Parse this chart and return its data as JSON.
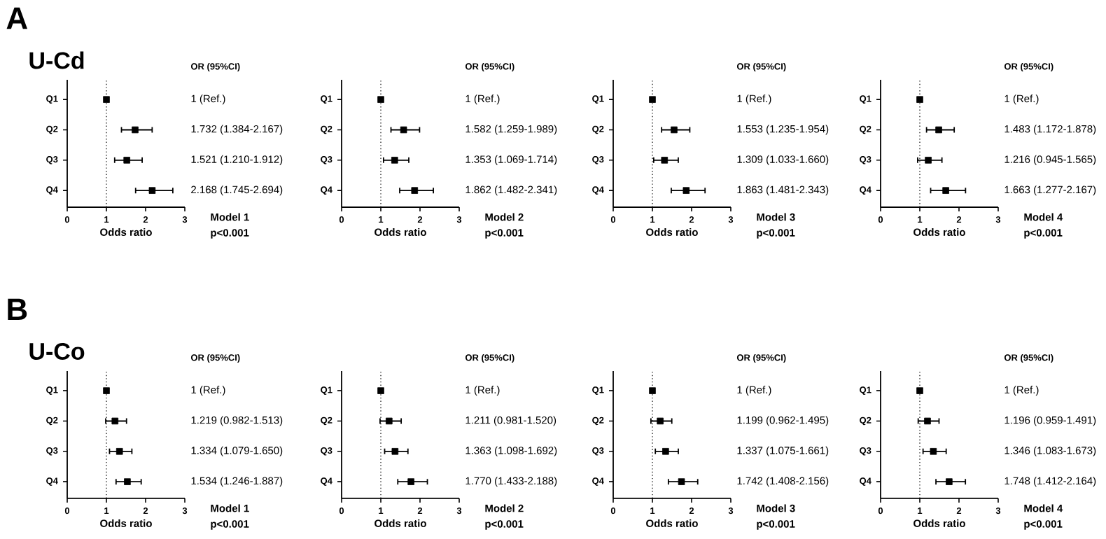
{
  "chart_data": [
    {
      "type": "scatter",
      "title": "A",
      "subtitle": "U-Cd",
      "orientation": "horizontal",
      "marker": "square",
      "color": "#000000",
      "categories": [
        "Q1",
        "Q2",
        "Q3",
        "Q4"
      ],
      "values": [
        1,
        1.732,
        1.521,
        2.168
      ],
      "errors": [
        null,
        [
          1.384,
          2.167
        ],
        [
          1.21,
          1.912
        ],
        [
          1.745,
          2.694
        ]
      ],
      "xlim": [
        0,
        3
      ],
      "xticks": [
        0,
        1,
        2,
        3
      ],
      "xlabel": "Odds ratio",
      "ref_lines": [
        {
          "axis": "x",
          "value": 1,
          "line_style": "dotted"
        }
      ],
      "annotations": [
        "OR (95%CI)",
        "1 (Ref.)",
        "1.732 (1.384-2.167)",
        "1.521 (1.210-1.912)",
        "2.168 (1.745-2.694)",
        "Model 1",
        "p<0.001"
      ]
    },
    {
      "type": "scatter",
      "orientation": "horizontal",
      "marker": "square",
      "color": "#000000",
      "categories": [
        "Q1",
        "Q2",
        "Q3",
        "Q4"
      ],
      "values": [
        1,
        1.582,
        1.353,
        1.862
      ],
      "errors": [
        null,
        [
          1.259,
          1.989
        ],
        [
          1.069,
          1.714
        ],
        [
          1.482,
          2.341
        ]
      ],
      "xlim": [
        0,
        3
      ],
      "xticks": [
        0,
        1,
        2,
        3
      ],
      "xlabel": "Odds ratio",
      "ref_lines": [
        {
          "axis": "x",
          "value": 1,
          "line_style": "dotted"
        }
      ],
      "annotations": [
        "OR (95%CI)",
        "1 (Ref.)",
        "1.582 (1.259-1.989)",
        "1.353 (1.069-1.714)",
        "1.862 (1.482-2.341)",
        "Model 2",
        "p<0.001"
      ]
    },
    {
      "type": "scatter",
      "orientation": "horizontal",
      "marker": "square",
      "color": "#000000",
      "categories": [
        "Q1",
        "Q2",
        "Q3",
        "Q4"
      ],
      "values": [
        1,
        1.553,
        1.309,
        1.863
      ],
      "errors": [
        null,
        [
          1.235,
          1.954
        ],
        [
          1.033,
          1.66
        ],
        [
          1.481,
          2.343
        ]
      ],
      "xlim": [
        0,
        3
      ],
      "xticks": [
        0,
        1,
        2,
        3
      ],
      "xlabel": "Odds ratio",
      "ref_lines": [
        {
          "axis": "x",
          "value": 1,
          "line_style": "dotted"
        }
      ],
      "annotations": [
        "OR (95%CI)",
        "1 (Ref.)",
        "1.553 (1.235-1.954)",
        "1.309 (1.033-1.660)",
        "1.863 (1.481-2.343)",
        "Model 3",
        "p<0.001"
      ]
    },
    {
      "type": "scatter",
      "orientation": "horizontal",
      "marker": "square",
      "color": "#000000",
      "categories": [
        "Q1",
        "Q2",
        "Q3",
        "Q4"
      ],
      "values": [
        1,
        1.483,
        1.216,
        1.663
      ],
      "errors": [
        null,
        [
          1.172,
          1.878
        ],
        [
          0.945,
          1.565
        ],
        [
          1.277,
          2.167
        ]
      ],
      "xlim": [
        0,
        3
      ],
      "xticks": [
        0,
        1,
        2,
        3
      ],
      "xlabel": "Odds ratio",
      "ref_lines": [
        {
          "axis": "x",
          "value": 1,
          "line_style": "dotted"
        }
      ],
      "annotations": [
        "OR (95%CI)",
        "1 (Ref.)",
        "1.483 (1.172-1.878)",
        "1.216 (0.945-1.565)",
        "1.663 (1.277-2.167)",
        "Model 4",
        "p<0.001"
      ]
    },
    {
      "type": "scatter",
      "title": "B",
      "subtitle": "U-Co",
      "orientation": "horizontal",
      "marker": "square",
      "color": "#000000",
      "categories": [
        "Q1",
        "Q2",
        "Q3",
        "Q4"
      ],
      "values": [
        1,
        1.219,
        1.334,
        1.534
      ],
      "errors": [
        null,
        [
          0.982,
          1.513
        ],
        [
          1.079,
          1.65
        ],
        [
          1.246,
          1.887
        ]
      ],
      "xlim": [
        0,
        3
      ],
      "xticks": [
        0,
        1,
        2,
        3
      ],
      "xlabel": "Odds ratio",
      "ref_lines": [
        {
          "axis": "x",
          "value": 1,
          "line_style": "dotted"
        }
      ],
      "annotations": [
        "OR (95%CI)",
        "1 (Ref.)",
        "1.219 (0.982-1.513)",
        "1.334 (1.079-1.650)",
        "1.534 (1.246-1.887)",
        "Model 1",
        "p<0.001"
      ]
    },
    {
      "type": "scatter",
      "orientation": "horizontal",
      "marker": "square",
      "color": "#000000",
      "categories": [
        "Q1",
        "Q2",
        "Q3",
        "Q4"
      ],
      "values": [
        1,
        1.211,
        1.363,
        1.77
      ],
      "errors": [
        null,
        [
          0.981,
          1.52
        ],
        [
          1.098,
          1.692
        ],
        [
          1.433,
          2.188
        ]
      ],
      "xlim": [
        0,
        3
      ],
      "xticks": [
        0,
        1,
        2,
        3
      ],
      "xlabel": "Odds ratio",
      "ref_lines": [
        {
          "axis": "x",
          "value": 1,
          "line_style": "dotted"
        }
      ],
      "annotations": [
        "OR (95%CI)",
        "1 (Ref.)",
        "1.211 (0.981-1.520)",
        "1.363 (1.098-1.692)",
        "1.770 (1.433-2.188)",
        "Model 2",
        "p<0.001"
      ]
    },
    {
      "type": "scatter",
      "orientation": "horizontal",
      "marker": "square",
      "color": "#000000",
      "categories": [
        "Q1",
        "Q2",
        "Q3",
        "Q4"
      ],
      "values": [
        1,
        1.199,
        1.337,
        1.742
      ],
      "errors": [
        null,
        [
          0.962,
          1.495
        ],
        [
          1.075,
          1.661
        ],
        [
          1.408,
          2.156
        ]
      ],
      "xlim": [
        0,
        3
      ],
      "xticks": [
        0,
        1,
        2,
        3
      ],
      "xlabel": "Odds ratio",
      "ref_lines": [
        {
          "axis": "x",
          "value": 1,
          "line_style": "dotted"
        }
      ],
      "annotations": [
        "OR (95%CI)",
        "1 (Ref.)",
        "1.199 (0.962-1.495)",
        "1.337 (1.075-1.661)",
        "1.742 (1.408-2.156)",
        "Model 3",
        "p<0.001"
      ]
    },
    {
      "type": "scatter",
      "orientation": "horizontal",
      "marker": "square",
      "color": "#000000",
      "categories": [
        "Q1",
        "Q2",
        "Q3",
        "Q4"
      ],
      "values": [
        1,
        1.196,
        1.346,
        1.748
      ],
      "errors": [
        null,
        [
          0.959,
          1.491
        ],
        [
          1.083,
          1.673
        ],
        [
          1.412,
          2.164
        ]
      ],
      "xlim": [
        0,
        3
      ],
      "xticks": [
        0,
        1,
        2,
        3
      ],
      "xlabel": "Odds ratio",
      "ref_lines": [
        {
          "axis": "x",
          "value": 1,
          "line_style": "dotted"
        }
      ],
      "annotations": [
        "OR (95%CI)",
        "1 (Ref.)",
        "1.196 (0.959-1.491)",
        "1.346 (1.083-1.673)",
        "1.748 (1.412-2.164)",
        "Model 4",
        "p<0.001"
      ]
    }
  ]
}
